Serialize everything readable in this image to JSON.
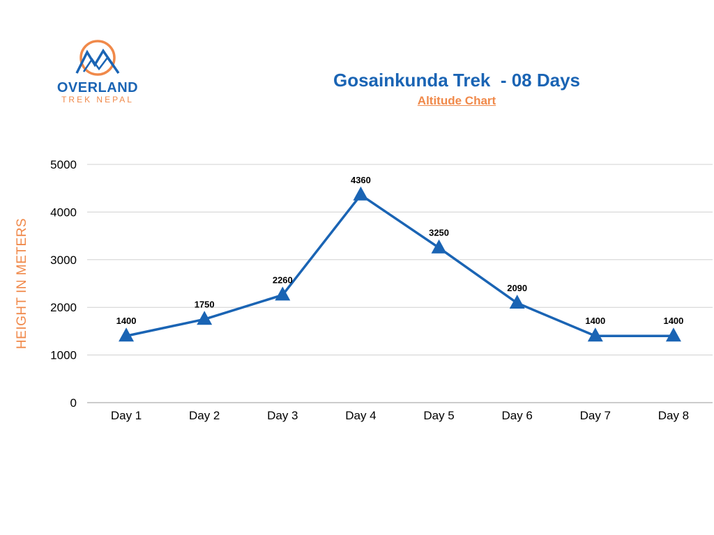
{
  "brand": {
    "name": "OVERLAND",
    "sub": "TREK NEPAL",
    "logo_icon": "mountain-circle-icon",
    "name_color": "#1a64b4",
    "accent_color": "#f0894a"
  },
  "chart_data": {
    "type": "line",
    "title": "Gosainkunda Trek  - 08 Days",
    "subtitle": "Altitude Chart",
    "xlabel": "",
    "ylabel": "HEIGHT IN METERS",
    "categories": [
      "Day 1",
      "Day 2",
      "Day 3",
      "Day 4",
      "Day 5",
      "Day 6",
      "Day 7",
      "Day 8"
    ],
    "series": [
      {
        "values": [
          1400,
          1750,
          2260,
          4360,
          3250,
          2090,
          1400,
          1400
        ]
      }
    ],
    "ylim": [
      0,
      5000
    ],
    "yticks": [
      0,
      1000,
      2000,
      3000,
      4000,
      5000
    ],
    "grid": true,
    "legend": "none",
    "marker": "triangle",
    "data_labels": true,
    "colors": {
      "line": "#1a64b4",
      "title": "#1a64b4",
      "subtitle": "#f0894a",
      "ylabel": "#f0894a",
      "grid": "#d0d0d0"
    }
  }
}
